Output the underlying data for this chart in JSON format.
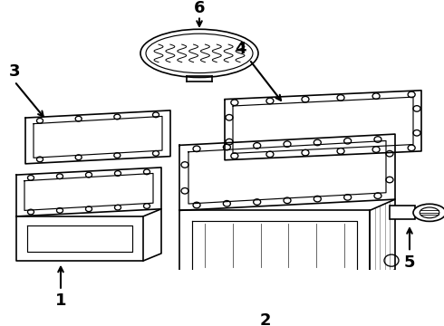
{
  "background_color": "#ffffff",
  "line_color": "#000000",
  "parts": [
    "1",
    "2",
    "3",
    "4",
    "5",
    "6"
  ],
  "fig_w": 4.9,
  "fig_h": 3.6,
  "dpi": 100
}
